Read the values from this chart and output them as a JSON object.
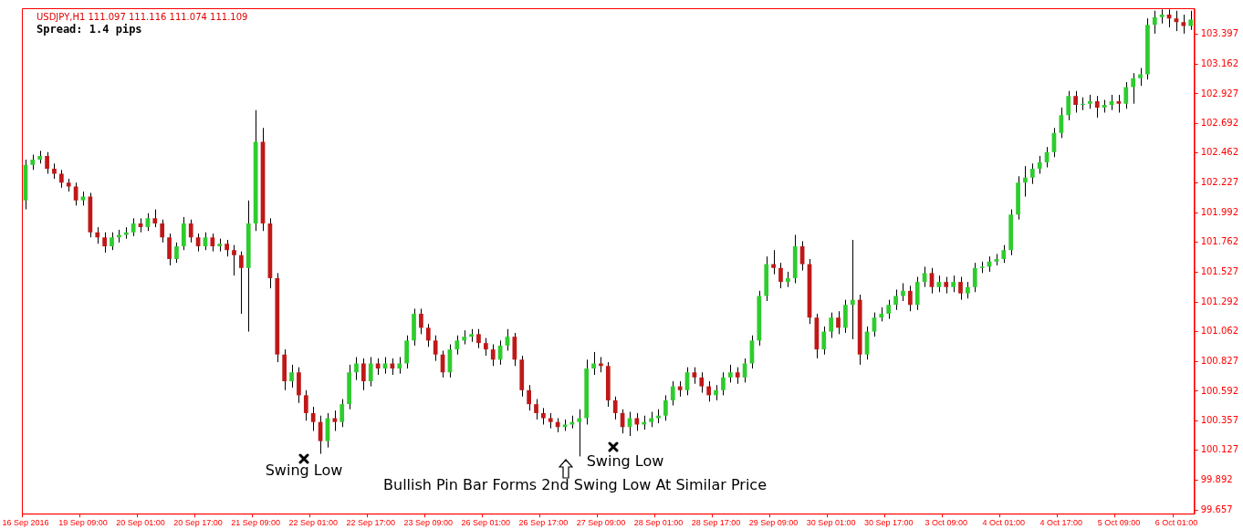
{
  "chart_data": {
    "type": "candlestick",
    "title": "USDJPY,H1  111.097 111.116 111.074 111.109",
    "subtitle": "Spread: 1.4 pips",
    "annotations": [
      "Swing Low",
      "Swing Low",
      "Bullish Pin Bar Forms 2nd Swing Low At Similar Price"
    ],
    "categories": [
      "16 Sep 2016",
      null,
      null,
      null,
      null,
      null,
      null,
      null,
      "19 Sep 09:00",
      null,
      null,
      null,
      null,
      null,
      null,
      null,
      "20 Sep 01:00",
      null,
      null,
      null,
      null,
      null,
      null,
      null,
      "20 Sep 17:00",
      null,
      null,
      null,
      null,
      null,
      null,
      null,
      "21 Sep 09:00",
      null,
      null,
      null,
      null,
      null,
      null,
      null,
      "22 Sep 01:00",
      null,
      null,
      null,
      null,
      null,
      null,
      null,
      "22 Sep 17:00",
      null,
      null,
      null,
      null,
      null,
      null,
      null,
      "23 Sep 09:00",
      null,
      null,
      null,
      null,
      null,
      null,
      null,
      "26 Sep 01:00",
      null,
      null,
      null,
      null,
      null,
      null,
      null,
      "26 Sep 17:00",
      null,
      null,
      null,
      null,
      null,
      null,
      null,
      "27 Sep 09:00",
      null,
      null,
      null,
      null,
      null,
      null,
      null,
      "28 Sep 01:00",
      null,
      null,
      null,
      null,
      null,
      null,
      null,
      "28 Sep 17:00",
      null,
      null,
      null,
      null,
      null,
      null,
      null,
      "29 Sep 09:00",
      null,
      null,
      null,
      null,
      null,
      null,
      null,
      "30 Sep 01:00",
      null,
      null,
      null,
      null,
      null,
      null,
      null,
      "30 Sep 17:00",
      null,
      null,
      null,
      null,
      null,
      null,
      null,
      "3 Oct 09:00",
      null,
      null,
      null,
      null,
      null,
      null,
      null,
      "4 Oct 01:00",
      null,
      null,
      null,
      null,
      null,
      null,
      null,
      "4 Oct 17:00",
      null,
      null,
      null,
      null,
      null,
      null,
      null,
      "5 Oct 09:00",
      null,
      null,
      null,
      null,
      null,
      null,
      null,
      "6 Oct 01:00",
      null,
      null
    ],
    "ohlc": [
      [
        102.09,
        102.41,
        102.02,
        102.37
      ],
      [
        102.37,
        102.45,
        102.33,
        102.41
      ],
      [
        102.41,
        102.48,
        102.38,
        102.44
      ],
      [
        102.44,
        102.47,
        102.3,
        102.34
      ],
      [
        102.34,
        102.38,
        102.26,
        102.3
      ],
      [
        102.3,
        102.33,
        102.19,
        102.23
      ],
      [
        102.23,
        102.26,
        102.16,
        102.2
      ],
      [
        102.2,
        102.23,
        102.05,
        102.09
      ],
      [
        102.09,
        102.16,
        102.05,
        102.12
      ],
      [
        102.12,
        102.15,
        101.8,
        101.84
      ],
      [
        101.84,
        101.88,
        101.75,
        101.8
      ],
      [
        101.8,
        101.84,
        101.68,
        101.73
      ],
      [
        101.73,
        101.84,
        101.7,
        101.8
      ],
      [
        101.8,
        101.86,
        101.76,
        101.82
      ],
      [
        101.82,
        101.88,
        101.79,
        101.84
      ],
      [
        101.84,
        101.95,
        101.81,
        101.91
      ],
      [
        101.91,
        101.95,
        101.84,
        101.88
      ],
      [
        101.88,
        101.99,
        101.85,
        101.95
      ],
      [
        101.95,
        102.02,
        101.88,
        101.91
      ],
      [
        101.91,
        101.94,
        101.76,
        101.8
      ],
      [
        101.8,
        101.83,
        101.58,
        101.63
      ],
      [
        101.63,
        101.76,
        101.6,
        101.73
      ],
      [
        101.73,
        101.96,
        101.7,
        101.91
      ],
      [
        101.91,
        101.94,
        101.76,
        101.8
      ],
      [
        101.8,
        101.83,
        101.69,
        101.73
      ],
      [
        101.73,
        101.84,
        101.7,
        101.8
      ],
      [
        101.8,
        101.83,
        101.69,
        101.73
      ],
      [
        101.73,
        101.79,
        101.69,
        101.75
      ],
      [
        101.75,
        101.78,
        101.65,
        101.7
      ],
      [
        101.7,
        101.74,
        101.5,
        101.66
      ],
      [
        101.66,
        101.69,
        101.2,
        101.56
      ],
      [
        101.56,
        102.09,
        101.06,
        101.91
      ],
      [
        101.91,
        102.8,
        101.85,
        102.55
      ],
      [
        102.55,
        102.66,
        101.85,
        101.91
      ],
      [
        101.91,
        101.95,
        101.4,
        101.48
      ],
      [
        101.48,
        101.52,
        100.82,
        100.88
      ],
      [
        100.88,
        100.92,
        100.6,
        100.67
      ],
      [
        100.67,
        100.8,
        100.62,
        100.74
      ],
      [
        100.74,
        100.78,
        100.5,
        100.56
      ],
      [
        100.56,
        100.6,
        100.36,
        100.42
      ],
      [
        100.42,
        100.47,
        100.28,
        100.35
      ],
      [
        100.35,
        100.4,
        100.1,
        100.2
      ],
      [
        100.2,
        100.42,
        100.15,
        100.38
      ],
      [
        100.38,
        100.44,
        100.28,
        100.35
      ],
      [
        100.35,
        100.53,
        100.31,
        100.49
      ],
      [
        100.49,
        100.8,
        100.45,
        100.74
      ],
      [
        100.74,
        100.86,
        100.68,
        100.81
      ],
      [
        100.81,
        100.85,
        100.6,
        100.67
      ],
      [
        100.67,
        100.86,
        100.63,
        100.81
      ],
      [
        100.81,
        100.85,
        100.72,
        100.77
      ],
      [
        100.77,
        100.86,
        100.73,
        100.81
      ],
      [
        100.81,
        100.85,
        100.72,
        100.77
      ],
      [
        100.77,
        100.86,
        100.73,
        100.81
      ],
      [
        100.81,
        101.03,
        100.77,
        100.99
      ],
      [
        100.99,
        101.24,
        100.95,
        101.2
      ],
      [
        101.2,
        101.24,
        101.04,
        101.09
      ],
      [
        101.09,
        101.12,
        100.94,
        100.99
      ],
      [
        100.99,
        101.03,
        100.83,
        100.88
      ],
      [
        100.88,
        100.91,
        100.7,
        100.74
      ],
      [
        100.74,
        100.96,
        100.7,
        100.92
      ],
      [
        100.92,
        101.03,
        100.88,
        100.99
      ],
      [
        100.99,
        101.07,
        100.96,
        101.02
      ],
      [
        101.02,
        101.08,
        100.98,
        101.04
      ],
      [
        101.04,
        101.08,
        100.93,
        100.97
      ],
      [
        100.97,
        101.01,
        100.87,
        100.92
      ],
      [
        100.92,
        100.96,
        100.79,
        100.84
      ],
      [
        100.84,
        100.99,
        100.8,
        100.95
      ],
      [
        100.95,
        101.08,
        100.91,
        101.02
      ],
      [
        101.02,
        101.05,
        100.79,
        100.84
      ],
      [
        100.84,
        100.87,
        100.55,
        100.6
      ],
      [
        100.6,
        100.64,
        100.44,
        100.49
      ],
      [
        100.49,
        100.53,
        100.37,
        100.42
      ],
      [
        100.42,
        100.46,
        100.33,
        100.38
      ],
      [
        100.38,
        100.42,
        100.3,
        100.35
      ],
      [
        100.35,
        100.38,
        100.27,
        100.31
      ],
      [
        100.31,
        100.37,
        100.28,
        100.33
      ],
      [
        100.33,
        100.4,
        100.3,
        100.35
      ],
      [
        100.35,
        100.45,
        100.08,
        100.38
      ],
      [
        100.38,
        100.84,
        100.33,
        100.77
      ],
      [
        100.77,
        100.9,
        100.72,
        100.81
      ],
      [
        100.81,
        100.86,
        100.74,
        100.79
      ],
      [
        100.79,
        100.82,
        100.47,
        100.52
      ],
      [
        100.52,
        100.55,
        100.37,
        100.42
      ],
      [
        100.42,
        100.45,
        100.26,
        100.31
      ],
      [
        100.31,
        100.43,
        100.24,
        100.38
      ],
      [
        100.38,
        100.42,
        100.28,
        100.33
      ],
      [
        100.33,
        100.4,
        100.29,
        100.35
      ],
      [
        100.35,
        100.43,
        100.31,
        100.38
      ],
      [
        100.38,
        100.45,
        100.34,
        100.4
      ],
      [
        100.4,
        100.56,
        100.36,
        100.52
      ],
      [
        100.52,
        100.67,
        100.48,
        100.63
      ],
      [
        100.63,
        100.67,
        100.55,
        100.6
      ],
      [
        100.6,
        100.78,
        100.56,
        100.74
      ],
      [
        100.74,
        100.78,
        100.65,
        100.7
      ],
      [
        100.7,
        100.74,
        100.58,
        100.63
      ],
      [
        100.63,
        100.67,
        100.51,
        100.56
      ],
      [
        100.56,
        100.64,
        100.52,
        100.6
      ],
      [
        100.6,
        100.74,
        100.56,
        100.7
      ],
      [
        100.7,
        100.8,
        100.66,
        100.74
      ],
      [
        100.74,
        100.78,
        100.65,
        100.7
      ],
      [
        100.7,
        100.85,
        100.66,
        100.81
      ],
      [
        100.81,
        101.03,
        100.77,
        100.99
      ],
      [
        100.99,
        101.38,
        100.95,
        101.34
      ],
      [
        101.34,
        101.65,
        101.3,
        101.59
      ],
      [
        101.59,
        101.7,
        101.51,
        101.56
      ],
      [
        101.56,
        101.6,
        101.4,
        101.45
      ],
      [
        101.45,
        101.53,
        101.41,
        101.48
      ],
      [
        101.48,
        101.82,
        101.44,
        101.73
      ],
      [
        101.73,
        101.77,
        101.54,
        101.59
      ],
      [
        101.59,
        101.63,
        101.12,
        101.17
      ],
      [
        101.17,
        101.2,
        100.85,
        100.92
      ],
      [
        100.92,
        101.1,
        100.88,
        101.06
      ],
      [
        101.06,
        101.21,
        101.01,
        101.17
      ],
      [
        101.17,
        101.22,
        101.04,
        101.09
      ],
      [
        101.09,
        101.31,
        101.05,
        101.27
      ],
      [
        101.27,
        101.78,
        101.0,
        101.31
      ],
      [
        101.31,
        101.35,
        100.8,
        100.88
      ],
      [
        100.88,
        101.1,
        100.84,
        101.06
      ],
      [
        101.06,
        101.21,
        101.02,
        101.17
      ],
      [
        101.17,
        101.25,
        101.14,
        101.2
      ],
      [
        101.2,
        101.31,
        101.16,
        101.27
      ],
      [
        101.27,
        101.39,
        101.23,
        101.34
      ],
      [
        101.34,
        101.44,
        101.3,
        101.38
      ],
      [
        101.38,
        101.42,
        101.22,
        101.27
      ],
      [
        101.27,
        101.49,
        101.23,
        101.45
      ],
      [
        101.45,
        101.57,
        101.41,
        101.52
      ],
      [
        101.52,
        101.56,
        101.36,
        101.41
      ],
      [
        101.41,
        101.5,
        101.37,
        101.45
      ],
      [
        101.45,
        101.49,
        101.36,
        101.41
      ],
      [
        101.41,
        101.5,
        101.37,
        101.45
      ],
      [
        101.45,
        101.49,
        101.31,
        101.36
      ],
      [
        101.36,
        101.45,
        101.32,
        101.41
      ],
      [
        101.41,
        101.6,
        101.37,
        101.56
      ],
      [
        101.56,
        101.61,
        101.52,
        101.57
      ],
      [
        101.57,
        101.65,
        101.53,
        101.61
      ],
      [
        101.61,
        101.67,
        101.58,
        101.63
      ],
      [
        101.63,
        101.74,
        101.6,
        101.7
      ],
      [
        101.7,
        102.02,
        101.66,
        101.98
      ],
      [
        101.98,
        102.28,
        101.94,
        102.23
      ],
      [
        102.23,
        102.36,
        102.12,
        102.27
      ],
      [
        102.27,
        102.38,
        102.22,
        102.34
      ],
      [
        102.34,
        102.44,
        102.3,
        102.39
      ],
      [
        102.39,
        102.51,
        102.35,
        102.47
      ],
      [
        102.47,
        102.66,
        102.43,
        102.62
      ],
      [
        102.62,
        102.82,
        102.58,
        102.76
      ],
      [
        102.76,
        102.95,
        102.72,
        102.91
      ],
      [
        102.91,
        102.95,
        102.78,
        102.84
      ],
      [
        102.84,
        102.9,
        102.8,
        102.85
      ],
      [
        102.85,
        102.92,
        102.81,
        102.87
      ],
      [
        102.87,
        102.91,
        102.74,
        102.82
      ],
      [
        102.82,
        102.88,
        102.78,
        102.84
      ],
      [
        102.84,
        102.92,
        102.8,
        102.87
      ],
      [
        102.87,
        102.92,
        102.78,
        102.85
      ],
      [
        102.85,
        103.02,
        102.81,
        102.98
      ],
      [
        102.98,
        103.09,
        102.85,
        103.05
      ],
      [
        103.05,
        103.13,
        102.99,
        103.08
      ],
      [
        103.08,
        103.52,
        103.04,
        103.47
      ],
      [
        103.47,
        103.58,
        103.4,
        103.53
      ],
      [
        103.53,
        103.59,
        103.48,
        103.55
      ],
      [
        103.55,
        103.59,
        103.45,
        103.52
      ],
      [
        103.52,
        103.58,
        103.42,
        103.49
      ],
      [
        103.49,
        103.55,
        103.4,
        103.46
      ],
      [
        103.46,
        103.58,
        103.43,
        103.51
      ]
    ],
    "colors": [
      "#2ecc2e",
      "#2ecc2e",
      "#2ecc2e",
      "#c01818",
      "#c01818",
      "#c01818",
      "#c01818",
      "#c01818",
      "#2ecc2e",
      "#c01818",
      "#c01818",
      "#c01818",
      "#2ecc2e",
      "#2ecc2e",
      "#2ecc2e",
      "#2ecc2e",
      "#c01818",
      "#2ecc2e",
      "#c01818",
      "#c01818",
      "#c01818",
      "#2ecc2e",
      "#2ecc2e",
      "#c01818",
      "#c01818",
      "#2ecc2e",
      "#c01818",
      "#2ecc2e",
      "#c01818",
      "#c01818",
      "#c01818",
      "#2ecc2e",
      "#2ecc2e",
      "#c01818",
      "#c01818",
      "#c01818",
      "#c01818",
      "#2ecc2e",
      "#c01818",
      "#c01818",
      "#c01818",
      "#c01818",
      "#2ecc2e",
      "#c01818",
      "#2ecc2e",
      "#2ecc2e",
      "#2ecc2e",
      "#c01818",
      "#2ecc2e",
      "#c01818",
      "#2ecc2e",
      "#c01818",
      "#2ecc2e",
      "#2ecc2e",
      "#2ecc2e",
      "#c01818",
      "#c01818",
      "#c01818",
      "#c01818",
      "#2ecc2e",
      "#2ecc2e",
      "#2ecc2e",
      "#2ecc2e",
      "#c01818",
      "#c01818",
      "#c01818",
      "#2ecc2e",
      "#2ecc2e",
      "#c01818",
      "#c01818",
      "#c01818",
      "#c01818",
      "#c01818",
      "#c01818",
      "#c01818",
      "#2ecc2e",
      "#2ecc2e",
      "#2ecc2e",
      "#2ecc2e",
      "#2ecc2e",
      "#c01818",
      "#c01818",
      "#c01818",
      "#c01818",
      "#2ecc2e",
      "#c01818",
      "#2ecc2e",
      "#2ecc2e",
      "#2ecc2e",
      "#2ecc2e",
      "#2ecc2e",
      "#c01818",
      "#2ecc2e",
      "#c01818",
      "#c01818",
      "#c01818",
      "#2ecc2e",
      "#2ecc2e",
      "#2ecc2e",
      "#c01818",
      "#2ecc2e",
      "#2ecc2e",
      "#2ecc2e",
      "#2ecc2e",
      "#c01818",
      "#c01818",
      "#2ecc2e",
      "#2ecc2e",
      "#c01818",
      "#c01818",
      "#c01818",
      "#2ecc2e",
      "#2ecc2e",
      "#c01818",
      "#2ecc2e",
      "#2ecc2e",
      "#c01818",
      "#2ecc2e",
      "#2ecc2e",
      "#2ecc2e",
      "#2ecc2e",
      "#2ecc2e",
      "#2ecc2e",
      "#c01818",
      "#2ecc2e",
      "#2ecc2e",
      "#c01818",
      "#2ecc2e",
      "#c01818",
      "#2ecc2e",
      "#c01818",
      "#2ecc2e",
      "#2ecc2e",
      "#2ecc2e",
      "#2ecc2e",
      "#2ecc2e",
      "#2ecc2e",
      "#2ecc2e",
      "#2ecc2e",
      "#2ecc2e",
      "#2ecc2e",
      "#2ecc2e",
      "#2ecc2e",
      "#2ecc2e",
      "#2ecc2e",
      "#2ecc2e",
      "#c01818",
      "#2ecc2e",
      "#2ecc2e",
      "#c01818",
      "#2ecc2e",
      "#2ecc2e",
      "#c01818",
      "#2ecc2e",
      "#2ecc2e",
      "#2ecc2e",
      "#2ecc2e",
      "#2ecc2e",
      "#2ecc2e",
      "#c01818",
      "#c01818",
      "#c01818",
      "#2ecc2e"
    ],
    "ylim": [
      99.63,
      103.6
    ],
    "yticks": [
      103.397,
      103.162,
      102.927,
      102.692,
      102.462,
      102.227,
      101.992,
      101.762,
      101.527,
      101.292,
      101.062,
      100.827,
      100.592,
      100.357,
      100.127,
      99.892,
      99.657
    ]
  }
}
